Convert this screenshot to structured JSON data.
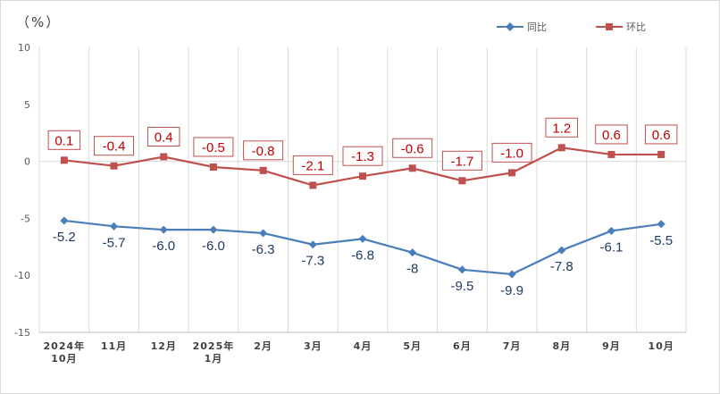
{
  "chart_data": {
    "type": "line",
    "unit_label": "（%）",
    "categories": [
      [
        "2024年",
        "10月"
      ],
      [
        "11月"
      ],
      [
        "12月"
      ],
      [
        "2025年",
        "1月"
      ],
      [
        "2月"
      ],
      [
        "3月"
      ],
      [
        "4月"
      ],
      [
        "5月"
      ],
      [
        "6月"
      ],
      [
        "7月"
      ],
      [
        "8月"
      ],
      [
        "9月"
      ],
      [
        "10月"
      ]
    ],
    "yticks": [
      "10",
      "5",
      "0",
      "-5",
      "-10",
      "-15"
    ],
    "ylim": [
      -15,
      10
    ],
    "series": [
      {
        "name": "同比",
        "color": "#4a7ebb",
        "marker": "diamond",
        "values": [
          -5.2,
          -5.7,
          -6.0,
          -6.0,
          -6.3,
          -7.3,
          -6.8,
          -8,
          -9.5,
          -9.9,
          -7.8,
          -6.1,
          -5.5
        ],
        "labels": [
          "-5.2",
          "-5.7",
          "-6.0",
          "-6.0",
          "-6.3",
          "-7.3",
          "-6.8",
          "-8",
          "-9.5",
          "-9.9",
          "-7.8",
          "-6.1",
          "-5.5"
        ]
      },
      {
        "name": "环比",
        "color": "#c0504d",
        "marker": "square",
        "values": [
          0.1,
          -0.4,
          0.4,
          -0.5,
          -0.8,
          -2.1,
          -1.3,
          -0.6,
          -1.7,
          -1.0,
          1.2,
          0.6,
          0.6
        ],
        "labels": [
          "0.1",
          "-0.4",
          "0.4",
          "-0.5",
          "-0.8",
          "-2.1",
          "-1.3",
          "-0.6",
          "-1.7",
          "-1.0",
          "1.2",
          "0.6",
          "0.6"
        ]
      }
    ]
  }
}
